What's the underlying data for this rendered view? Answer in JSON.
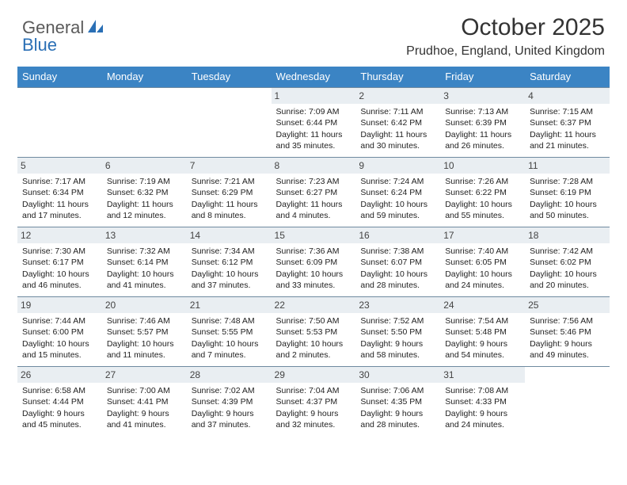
{
  "brand": {
    "part1": "General",
    "part2": "Blue"
  },
  "title": "October 2025",
  "location": "Prudhoe, England, United Kingdom",
  "colors": {
    "header_bg": "#3b84c4",
    "daynum_bg": "#e9eef2",
    "rule": "#6f8aa0",
    "brand_blue": "#2a6fb5",
    "brand_gray": "#5a5a5a"
  },
  "weekdays": [
    "Sunday",
    "Monday",
    "Tuesday",
    "Wednesday",
    "Thursday",
    "Friday",
    "Saturday"
  ],
  "layout": {
    "weeks": 5,
    "first_weekday_index": 3,
    "days_in_month": 31
  },
  "days": {
    "1": {
      "sunrise": "7:09 AM",
      "sunset": "6:44 PM",
      "daylight": "11 hours and 35 minutes."
    },
    "2": {
      "sunrise": "7:11 AM",
      "sunset": "6:42 PM",
      "daylight": "11 hours and 30 minutes."
    },
    "3": {
      "sunrise": "7:13 AM",
      "sunset": "6:39 PM",
      "daylight": "11 hours and 26 minutes."
    },
    "4": {
      "sunrise": "7:15 AM",
      "sunset": "6:37 PM",
      "daylight": "11 hours and 21 minutes."
    },
    "5": {
      "sunrise": "7:17 AM",
      "sunset": "6:34 PM",
      "daylight": "11 hours and 17 minutes."
    },
    "6": {
      "sunrise": "7:19 AM",
      "sunset": "6:32 PM",
      "daylight": "11 hours and 12 minutes."
    },
    "7": {
      "sunrise": "7:21 AM",
      "sunset": "6:29 PM",
      "daylight": "11 hours and 8 minutes."
    },
    "8": {
      "sunrise": "7:23 AM",
      "sunset": "6:27 PM",
      "daylight": "11 hours and 4 minutes."
    },
    "9": {
      "sunrise": "7:24 AM",
      "sunset": "6:24 PM",
      "daylight": "10 hours and 59 minutes."
    },
    "10": {
      "sunrise": "7:26 AM",
      "sunset": "6:22 PM",
      "daylight": "10 hours and 55 minutes."
    },
    "11": {
      "sunrise": "7:28 AM",
      "sunset": "6:19 PM",
      "daylight": "10 hours and 50 minutes."
    },
    "12": {
      "sunrise": "7:30 AM",
      "sunset": "6:17 PM",
      "daylight": "10 hours and 46 minutes."
    },
    "13": {
      "sunrise": "7:32 AM",
      "sunset": "6:14 PM",
      "daylight": "10 hours and 41 minutes."
    },
    "14": {
      "sunrise": "7:34 AM",
      "sunset": "6:12 PM",
      "daylight": "10 hours and 37 minutes."
    },
    "15": {
      "sunrise": "7:36 AM",
      "sunset": "6:09 PM",
      "daylight": "10 hours and 33 minutes."
    },
    "16": {
      "sunrise": "7:38 AM",
      "sunset": "6:07 PM",
      "daylight": "10 hours and 28 minutes."
    },
    "17": {
      "sunrise": "7:40 AM",
      "sunset": "6:05 PM",
      "daylight": "10 hours and 24 minutes."
    },
    "18": {
      "sunrise": "7:42 AM",
      "sunset": "6:02 PM",
      "daylight": "10 hours and 20 minutes."
    },
    "19": {
      "sunrise": "7:44 AM",
      "sunset": "6:00 PM",
      "daylight": "10 hours and 15 minutes."
    },
    "20": {
      "sunrise": "7:46 AM",
      "sunset": "5:57 PM",
      "daylight": "10 hours and 11 minutes."
    },
    "21": {
      "sunrise": "7:48 AM",
      "sunset": "5:55 PM",
      "daylight": "10 hours and 7 minutes."
    },
    "22": {
      "sunrise": "7:50 AM",
      "sunset": "5:53 PM",
      "daylight": "10 hours and 2 minutes."
    },
    "23": {
      "sunrise": "7:52 AM",
      "sunset": "5:50 PM",
      "daylight": "9 hours and 58 minutes."
    },
    "24": {
      "sunrise": "7:54 AM",
      "sunset": "5:48 PM",
      "daylight": "9 hours and 54 minutes."
    },
    "25": {
      "sunrise": "7:56 AM",
      "sunset": "5:46 PM",
      "daylight": "9 hours and 49 minutes."
    },
    "26": {
      "sunrise": "6:58 AM",
      "sunset": "4:44 PM",
      "daylight": "9 hours and 45 minutes."
    },
    "27": {
      "sunrise": "7:00 AM",
      "sunset": "4:41 PM",
      "daylight": "9 hours and 41 minutes."
    },
    "28": {
      "sunrise": "7:02 AM",
      "sunset": "4:39 PM",
      "daylight": "9 hours and 37 minutes."
    },
    "29": {
      "sunrise": "7:04 AM",
      "sunset": "4:37 PM",
      "daylight": "9 hours and 32 minutes."
    },
    "30": {
      "sunrise": "7:06 AM",
      "sunset": "4:35 PM",
      "daylight": "9 hours and 28 minutes."
    },
    "31": {
      "sunrise": "7:08 AM",
      "sunset": "4:33 PM",
      "daylight": "9 hours and 24 minutes."
    }
  },
  "labels": {
    "sunrise": "Sunrise:",
    "sunset": "Sunset:",
    "daylight": "Daylight:"
  }
}
